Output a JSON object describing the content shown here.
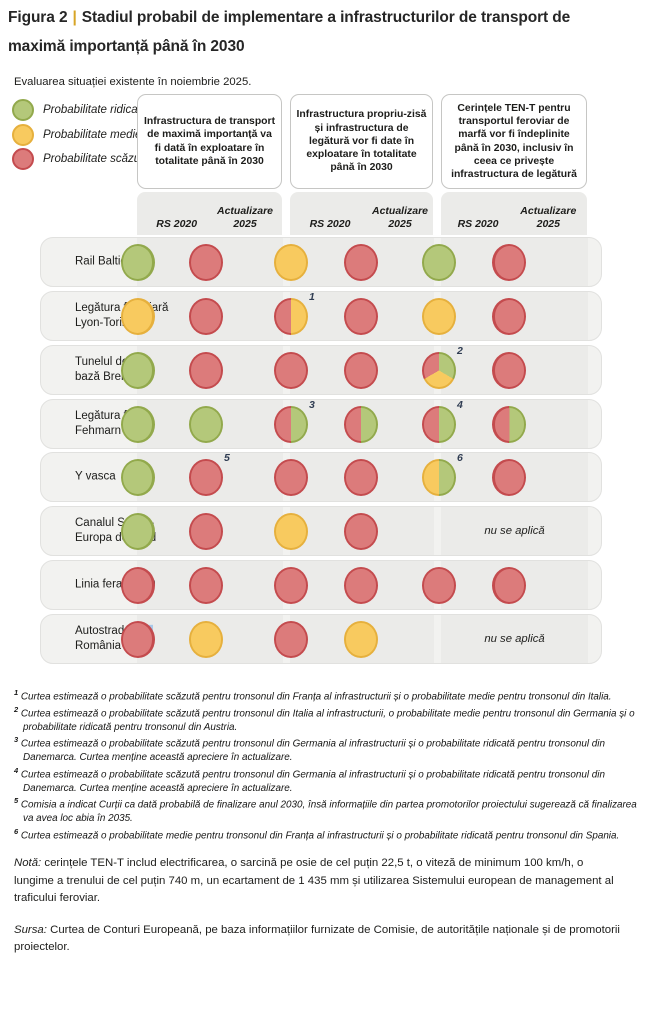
{
  "figure": {
    "label": "Figura 2",
    "separator": "|",
    "title": "Stadiul probabil de implementare a infrastructurilor de transport de maximă importanță până în 2030",
    "subtitle": "Evaluarea situației existente în noiembrie 2025."
  },
  "colors": {
    "high_fill": "#b4c87a",
    "high_border": "#92a94c",
    "medium_fill": "#f8ca5f",
    "medium_border": "#e6b03d",
    "low_fill": "#dc7b7b",
    "low_border": "#c44b4e",
    "accent_gold": "#d8a526",
    "footnote_marker": "#2f3c52",
    "selection_highlight": "#aac9e9",
    "row_bg": "#f2f2f0",
    "strip_bg": "#ebebe9"
  },
  "legend": [
    {
      "level": "high",
      "label": "Probabilitate ridicată"
    },
    {
      "level": "medium",
      "label": "Probabilitate medie"
    },
    {
      "level": "low",
      "label": "Probabilitate scăzută"
    }
  ],
  "columns": [
    {
      "header": "Infrastructura de transport de maximă importanță va fi dată în exploatare în totalitate până în 2030"
    },
    {
      "header": "Infrastructura propriu-zisă și infrastructura de legătură vor fi date în exploatare în totalitate până în 2030"
    },
    {
      "header": "Cerințele TEN-T pentru transportul feroviar de marfă vor fi îndeplinite până în 2030, inclusiv în ceea ce privește infrastructura de legătură"
    }
  ],
  "sub_headers": {
    "rs": "RS 2020",
    "act_line1": "Actualizare",
    "act_line2": "2025"
  },
  "not_applicable_label": "nu se aplică",
  "rows": [
    {
      "label_lines": [
        [
          {
            "text": "Rail Baltica"
          }
        ]
      ],
      "groups": [
        {
          "rs": {
            "type": "single",
            "level": "high"
          },
          "act": {
            "type": "single",
            "level": "low"
          }
        },
        {
          "rs": {
            "type": "single",
            "level": "medium"
          },
          "act": {
            "type": "single",
            "level": "low"
          }
        },
        {
          "rs": {
            "type": "single",
            "level": "high"
          },
          "act": {
            "type": "single",
            "level": "low"
          }
        }
      ]
    },
    {
      "label_lines": [
        [
          {
            "text": "Legătura feroviară"
          }
        ],
        [
          {
            "text": "Lyon-Torino"
          }
        ]
      ],
      "groups": [
        {
          "rs": {
            "type": "single",
            "level": "medium"
          },
          "act": {
            "type": "single",
            "level": "low"
          }
        },
        {
          "rs": {
            "type": "half",
            "left": "low",
            "right": "medium",
            "footnote": "1"
          },
          "act": {
            "type": "single",
            "level": "low"
          }
        },
        {
          "rs": {
            "type": "single",
            "level": "medium"
          },
          "act": {
            "type": "single",
            "level": "low"
          }
        }
      ]
    },
    {
      "label_lines": [
        [
          {
            "text": "Tunelul de"
          }
        ],
        [
          {
            "text": "bază Brenner"
          }
        ]
      ],
      "groups": [
        {
          "rs": {
            "type": "single",
            "level": "high"
          },
          "act": {
            "type": "single",
            "level": "low"
          }
        },
        {
          "rs": {
            "type": "single",
            "level": "low"
          },
          "act": {
            "type": "single",
            "level": "low"
          }
        },
        {
          "rs": {
            "type": "pie",
            "segments": [
              "high",
              "medium",
              "low"
            ],
            "footnote": "2"
          },
          "act": {
            "type": "single",
            "level": "low"
          }
        }
      ]
    },
    {
      "label_lines": [
        [
          {
            "text": "Legătura fixă"
          }
        ],
        [
          {
            "text": "Fehmarn Belt"
          }
        ]
      ],
      "groups": [
        {
          "rs": {
            "type": "single",
            "level": "high"
          },
          "act": {
            "type": "single",
            "level": "high"
          }
        },
        {
          "rs": {
            "type": "half",
            "left": "low",
            "right": "high",
            "footnote": "3"
          },
          "act": {
            "type": "half",
            "left": "low",
            "right": "high"
          }
        },
        {
          "rs": {
            "type": "half",
            "left": "low",
            "right": "high",
            "footnote": "4"
          },
          "act": {
            "type": "half",
            "left": "low",
            "right": "high"
          }
        }
      ]
    },
    {
      "label_lines": [
        [
          {
            "text": "Y vasca"
          }
        ]
      ],
      "groups": [
        {
          "rs": {
            "type": "single",
            "level": "high"
          },
          "act": {
            "type": "single",
            "level": "low",
            "footnote": "5"
          }
        },
        {
          "rs": {
            "type": "single",
            "level": "low"
          },
          "act": {
            "type": "single",
            "level": "low"
          }
        },
        {
          "rs": {
            "type": "half",
            "left": "medium",
            "right": "high",
            "footnote": "6"
          },
          "act": {
            "type": "single",
            "level": "low"
          }
        }
      ]
    },
    {
      "label_lines": [
        [
          {
            "text": "Canalul Sena –"
          }
        ],
        [
          {
            "text": "Europa de Nord"
          }
        ]
      ],
      "groups": [
        {
          "rs": {
            "type": "single",
            "level": "high"
          },
          "act": {
            "type": "single",
            "level": "low"
          }
        },
        {
          "rs": {
            "type": "single",
            "level": "medium"
          },
          "act": {
            "type": "single",
            "level": "low"
          }
        },
        {
          "not_applicable": true
        }
      ]
    },
    {
      "label_lines": [
        [
          {
            "text": "Linia ferată E59"
          }
        ]
      ],
      "groups": [
        {
          "rs": {
            "type": "single",
            "level": "low"
          },
          "act": {
            "type": "single",
            "level": "low"
          }
        },
        {
          "rs": {
            "type": "single",
            "level": "low"
          },
          "act": {
            "type": "single",
            "level": "low"
          }
        },
        {
          "rs": {
            "type": "single",
            "level": "low"
          },
          "act": {
            "type": "single",
            "level": "low"
          }
        }
      ]
    },
    {
      "label_lines": [
        [
          {
            "text": "Autostrada "
          },
          {
            "text": "A1,",
            "highlight": true
          }
        ],
        [
          {
            "text": "România"
          }
        ]
      ],
      "groups": [
        {
          "rs": {
            "type": "single",
            "level": "low"
          },
          "act": {
            "type": "single",
            "level": "medium"
          }
        },
        {
          "rs": {
            "type": "single",
            "level": "low"
          },
          "act": {
            "type": "single",
            "level": "medium"
          }
        },
        {
          "not_applicable": true
        }
      ]
    }
  ],
  "footnotes": [
    {
      "marker": "1",
      "text": "Curtea estimează o probabilitate scăzută pentru tronsonul din Franța al infrastructurii și o probabilitate medie pentru tronsonul din Italia."
    },
    {
      "marker": "2",
      "text": "Curtea estimează o probabilitate scăzută pentru tronsonul din Italia al infrastructurii, o probabilitate medie pentru tronsonul din Germania și o probabilitate ridicată pentru tronsonul din Austria."
    },
    {
      "marker": "3",
      "text": "Curtea estimează o probabilitate scăzută pentru tronsonul din Germania al infrastructurii și o probabilitate ridicată pentru tronsonul din Danemarca. Curtea menține această apreciere în actualizare."
    },
    {
      "marker": "4",
      "text": "Curtea estimează o probabilitate scăzută pentru tronsonul din Germania al infrastructurii și o probabilitate ridicată pentru tronsonul din Danemarca. Curtea menține această apreciere în actualizare."
    },
    {
      "marker": "5",
      "text": "Comisia a indicat Curții ca dată probabilă de finalizare anul 2030, însă informațiile din partea promotorilor proiectului sugerează că finalizarea va avea loc abia în 2035."
    },
    {
      "marker": "6",
      "text": "Curtea estimează o probabilitate medie pentru tronsonul din Franța al infrastructurii și o probabilitate ridicată pentru tronsonul din Spania."
    }
  ],
  "note": {
    "label": "Notă:",
    "text": " cerințele TEN-T includ electrificarea, o sarcină pe osie de cel puțin 22,5 t, o viteză de minimum 100 km/h, o lungime a trenului de cel puțin 740 m, un ecartament de 1 435 mm și utilizarea Sistemului european de management al traficului feroviar."
  },
  "source": {
    "label": "Sursa:",
    "text": " Curtea de Conturi Europeană, pe baza informațiilor furnizate de Comisie, de autoritățile naționale și de promotorii proiectelor."
  },
  "chart_data": {
    "type": "table",
    "title": "Stadiul probabil de implementare a infrastructurilor de transport de maximă importanță până în 2030",
    "subtitle": "Evaluarea situației existente în noiembrie 2025.",
    "legend": [
      {
        "color": "verde",
        "meaning": "Probabilitate ridicată"
      },
      {
        "color": "galben",
        "meaning": "Probabilitate medie"
      },
      {
        "color": "roșu",
        "meaning": "Probabilitate scăzută"
      }
    ],
    "column_groups": [
      {
        "header": "Infrastructura de transport de maximă importanță va fi dată în exploatare în totalitate până în 2030",
        "sub_columns": [
          "RS 2020",
          "Actualizare 2025"
        ]
      },
      {
        "header": "Infrastructura propriu-zisă și infrastructura de legătură vor fi date în exploatare în totalitate până în 2030",
        "sub_columns": [
          "RS 2020",
          "Actualizare 2025"
        ]
      },
      {
        "header": "Cerințele TEN-T pentru transportul feroviar de marfă vor fi îndeplinite până în 2030, inclusiv în ceea ce privește infrastructura de legătură",
        "sub_columns": [
          "RS 2020",
          "Actualizare 2025"
        ]
      }
    ],
    "rows": [
      {
        "name": "Rail Baltica",
        "values": [
          "ridicată",
          "scăzută",
          "medie",
          "scăzută",
          "ridicată",
          "scăzută"
        ]
      },
      {
        "name": "Legătura feroviară Lyon-Torino",
        "values": [
          "medie",
          "scăzută",
          "scăzută/medie (nota 1)",
          "scăzută",
          "medie",
          "scăzută"
        ]
      },
      {
        "name": "Tunelul de bază Brenner",
        "values": [
          "ridicată",
          "scăzută",
          "scăzută",
          "scăzută",
          "scăzută/medie/ridicată (nota 2)",
          "scăzută"
        ]
      },
      {
        "name": "Legătura fixă Fehmarn Belt",
        "values": [
          "ridicată",
          "ridicată",
          "scăzută/ridicată (nota 3)",
          "scăzută/ridicată",
          "scăzută/ridicată (nota 4)",
          "scăzută/ridicată"
        ]
      },
      {
        "name": "Y vasca",
        "values": [
          "ridicată",
          "scăzută (nota 5)",
          "scăzută",
          "scăzută",
          "medie/ridicată (nota 6)",
          "scăzută"
        ]
      },
      {
        "name": "Canalul Sena – Europa de Nord",
        "values": [
          "ridicată",
          "scăzută",
          "medie",
          "scăzută",
          "nu se aplică",
          "nu se aplică"
        ]
      },
      {
        "name": "Linia ferată E59",
        "values": [
          "scăzută",
          "scăzută",
          "scăzută",
          "scăzută",
          "scăzută",
          "scăzută"
        ]
      },
      {
        "name": "Autostrada A1, România",
        "values": [
          "scăzută",
          "medie",
          "scăzută",
          "medie",
          "nu se aplică",
          "nu se aplică"
        ]
      }
    ]
  }
}
